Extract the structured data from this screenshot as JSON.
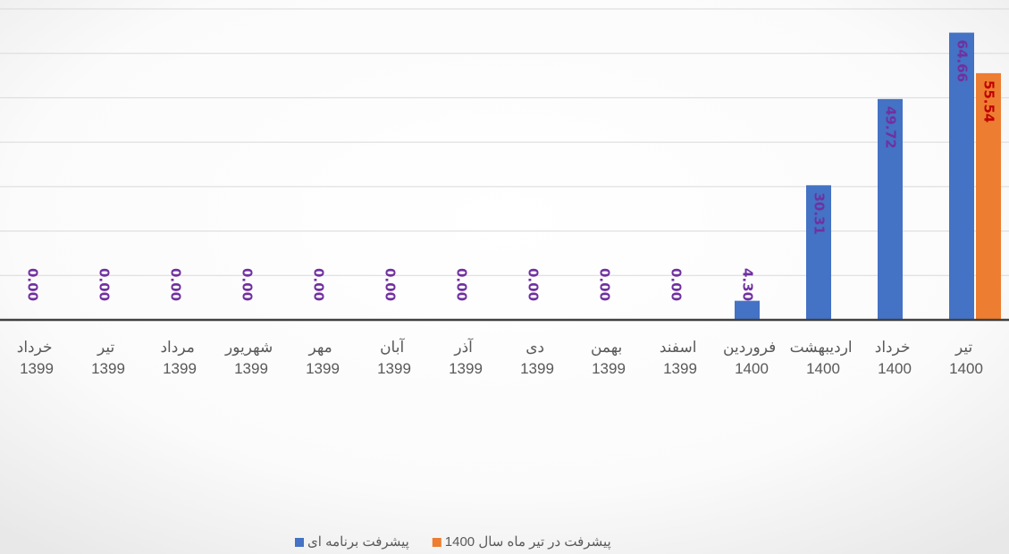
{
  "chart_data": {
    "type": "bar",
    "categories": [
      "خرداد 1399",
      "تیر 1399",
      "مرداد 1399",
      "شهریور 1399",
      "مهر 1399",
      "آبان 1399",
      "آذر 1399",
      "دی 1399",
      "بهمن 1399",
      "اسفند 1399",
      "فروردین 1400",
      "اردیبهشت 1400",
      "خرداد 1400",
      "تیر 1400"
    ],
    "series": [
      {
        "name": "پیشرفت برنامه ای",
        "color": "#4472c4",
        "label_color": "#7030a0",
        "values": [
          0,
          0,
          0,
          0,
          0,
          0,
          0,
          0,
          0,
          0,
          4.3,
          30.31,
          49.72,
          64.66
        ],
        "value_labels": [
          "0.00",
          "0.00",
          "0.00",
          "0.00",
          "0.00",
          "0.00",
          "0.00",
          "0.00",
          "0.00",
          "0.00",
          "4.30",
          "30.31",
          "49.72",
          "64.66"
        ]
      },
      {
        "name": "پیشرفت در تیر ماه سال 1400",
        "color": "#ed7d31",
        "label_color": "#c00000",
        "values": [
          null,
          null,
          null,
          null,
          null,
          null,
          null,
          null,
          null,
          null,
          null,
          null,
          null,
          55.54
        ],
        "value_labels": [
          null,
          null,
          null,
          null,
          null,
          null,
          null,
          null,
          null,
          null,
          null,
          null,
          null,
          "55.54"
        ]
      }
    ],
    "ylim": [
      0,
      70
    ],
    "yticks": [
      0,
      10,
      20,
      30,
      40,
      50,
      60,
      70
    ],
    "grid": true,
    "legend": "bottom"
  }
}
